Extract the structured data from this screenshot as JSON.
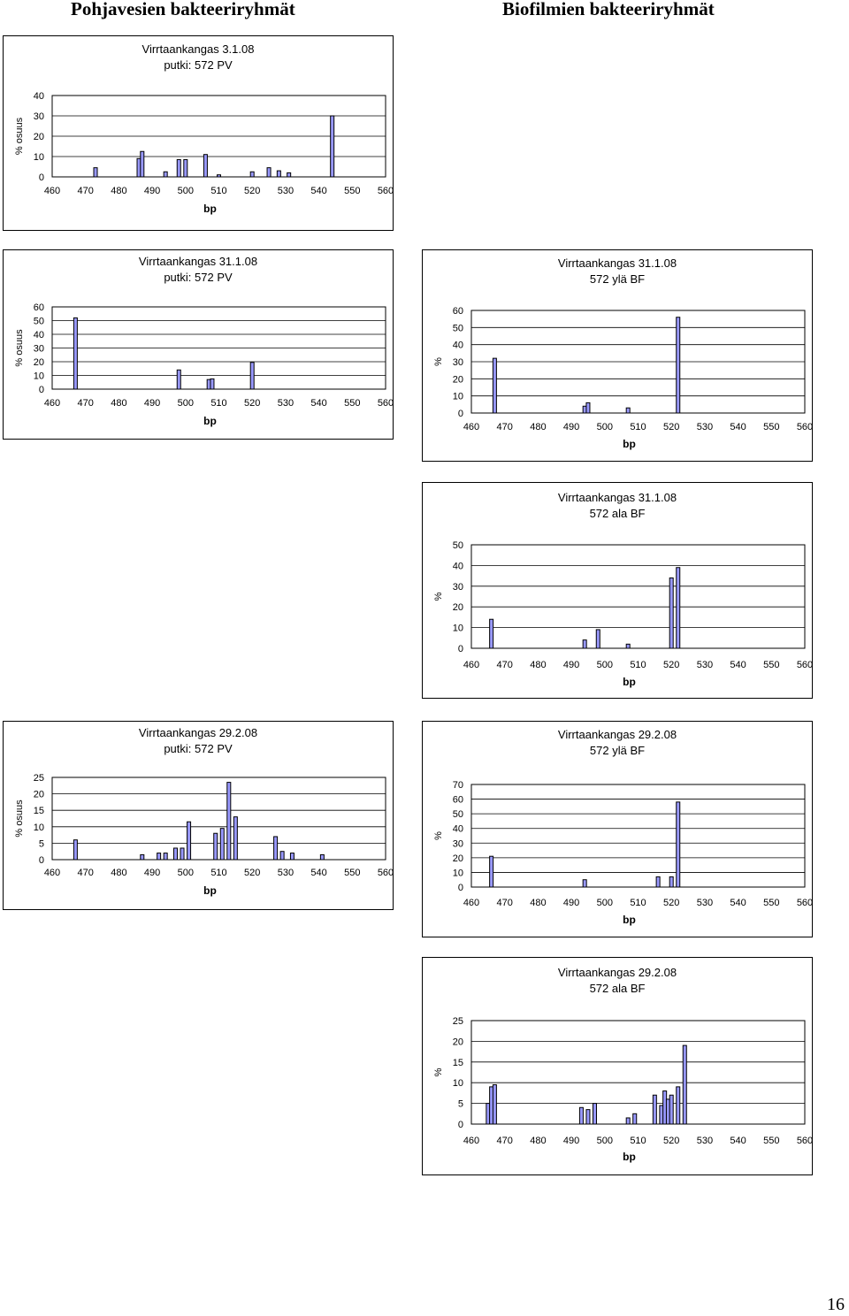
{
  "headings": {
    "left": "Pohjavesien bakteeriryhmät",
    "right": "Biofilmien bakteeriryhmät"
  },
  "page_number": "16",
  "style": {
    "bar_fill": "#9999ff",
    "bar_stroke": "#000000",
    "grid": "#000000"
  },
  "chart_data": [
    {
      "type": "bar",
      "title_lines": [
        "Virrtaankangas 3.1.08",
        "putki: 572  PV"
      ],
      "xlabel": "bp",
      "ylabel": "% osuus",
      "xticks": [
        460,
        470,
        480,
        490,
        500,
        510,
        520,
        530,
        540,
        550,
        560
      ],
      "xlim": [
        460,
        560
      ],
      "ylim": [
        0,
        40
      ],
      "yticks": [
        0,
        10,
        20,
        30,
        40
      ],
      "grid": "horizontal",
      "bars": [
        [
          473,
          4.5
        ],
        [
          486,
          9
        ],
        [
          487,
          12.5
        ],
        [
          494,
          2.5
        ],
        [
          498,
          8.5
        ],
        [
          500,
          8.5
        ],
        [
          506,
          11
        ],
        [
          510,
          1
        ],
        [
          520,
          2.5
        ],
        [
          525,
          4.5
        ],
        [
          528,
          3
        ],
        [
          531,
          2
        ],
        [
          544,
          30
        ]
      ]
    },
    {
      "type": "bar",
      "title_lines": [
        "Virrtaankangas 31.1.08",
        "putki: 572  PV"
      ],
      "xlabel": "bp",
      "ylabel": "% osuus",
      "xticks": [
        460,
        470,
        480,
        490,
        500,
        510,
        520,
        530,
        540,
        550,
        560
      ],
      "xlim": [
        460,
        560
      ],
      "ylim": [
        0,
        60
      ],
      "yticks": [
        0,
        10,
        20,
        30,
        40,
        50,
        60
      ],
      "grid": "horizontal",
      "bars": [
        [
          467,
          52
        ],
        [
          498,
          14
        ],
        [
          507,
          7
        ],
        [
          508,
          7.5
        ],
        [
          520,
          19.5
        ]
      ]
    },
    {
      "type": "bar",
      "title_lines": [
        "Virrtaankangas 31.1.08",
        "572 ylä  BF"
      ],
      "xlabel": "bp",
      "ylabel": "%",
      "xticks": [
        460,
        470,
        480,
        490,
        500,
        510,
        520,
        530,
        540,
        550,
        560
      ],
      "xlim": [
        460,
        560
      ],
      "ylim": [
        0,
        60
      ],
      "yticks": [
        0,
        10,
        20,
        30,
        40,
        50,
        60
      ],
      "grid": "horizontal",
      "bars": [
        [
          467,
          32
        ],
        [
          494,
          4
        ],
        [
          495,
          6
        ],
        [
          507,
          3
        ],
        [
          522,
          56
        ]
      ]
    },
    {
      "type": "bar",
      "title_lines": [
        "Virrtaankangas 31.1.08",
        "572 ala  BF"
      ],
      "xlabel": "bp",
      "ylabel": "%",
      "xticks": [
        460,
        470,
        480,
        490,
        500,
        510,
        520,
        530,
        540,
        550,
        560
      ],
      "xlim": [
        460,
        560
      ],
      "ylim": [
        0,
        50
      ],
      "yticks": [
        0,
        10,
        20,
        30,
        40,
        50
      ],
      "grid": "horizontal",
      "bars": [
        [
          466,
          14
        ],
        [
          494,
          4
        ],
        [
          498,
          9
        ],
        [
          507,
          2
        ],
        [
          520,
          34
        ],
        [
          522,
          39
        ]
      ]
    },
    {
      "type": "bar",
      "title_lines": [
        "Virrtaankangas 29.2.08",
        "putki: 572  PV"
      ],
      "xlabel": "bp",
      "ylabel": "% osuus",
      "xticks": [
        460,
        470,
        480,
        490,
        500,
        510,
        520,
        530,
        540,
        550,
        560
      ],
      "xlim": [
        460,
        560
      ],
      "ylim": [
        0,
        25
      ],
      "yticks": [
        0,
        5,
        10,
        15,
        20,
        25
      ],
      "grid": "horizontal",
      "bars": [
        [
          467,
          6
        ],
        [
          487,
          1.5
        ],
        [
          492,
          2
        ],
        [
          494,
          2
        ],
        [
          497,
          3.5
        ],
        [
          499,
          3.5
        ],
        [
          501,
          11.5
        ],
        [
          509,
          8
        ],
        [
          511,
          9.5
        ],
        [
          513,
          23.5
        ],
        [
          515,
          13
        ],
        [
          527,
          7
        ],
        [
          529,
          2.5
        ],
        [
          532,
          2
        ],
        [
          541,
          1.5
        ]
      ]
    },
    {
      "type": "bar",
      "title_lines": [
        "Virrtaankangas 29.2.08",
        "572 ylä  BF"
      ],
      "xlabel": "bp",
      "ylabel": "%",
      "xticks": [
        460,
        470,
        480,
        490,
        500,
        510,
        520,
        530,
        540,
        550,
        560
      ],
      "xlim": [
        460,
        560
      ],
      "ylim": [
        0,
        70
      ],
      "yticks": [
        0,
        10,
        20,
        30,
        40,
        50,
        60,
        70
      ],
      "grid": "horizontal",
      "bars": [
        [
          466,
          21
        ],
        [
          494,
          5
        ],
        [
          516,
          7
        ],
        [
          520,
          7
        ],
        [
          522,
          58
        ]
      ]
    },
    {
      "type": "bar",
      "title_lines": [
        "Virrtaankangas 29.2.08",
        "572 ala  BF"
      ],
      "xlabel": "bp",
      "ylabel": "%",
      "xticks": [
        460,
        470,
        480,
        490,
        500,
        510,
        520,
        530,
        540,
        550,
        560
      ],
      "xlim": [
        460,
        560
      ],
      "ylim": [
        0,
        25
      ],
      "yticks": [
        0,
        5,
        10,
        15,
        20,
        25
      ],
      "grid": "horizontal",
      "bars": [
        [
          465,
          5
        ],
        [
          466,
          9
        ],
        [
          467,
          9.5
        ],
        [
          493,
          4
        ],
        [
          495,
          3.5
        ],
        [
          497,
          5
        ],
        [
          507,
          1.5
        ],
        [
          509,
          2.5
        ],
        [
          515,
          7
        ],
        [
          517,
          4.5
        ],
        [
          518,
          8
        ],
        [
          519,
          6
        ],
        [
          520,
          7
        ],
        [
          522,
          9
        ],
        [
          524,
          19
        ]
      ]
    }
  ]
}
